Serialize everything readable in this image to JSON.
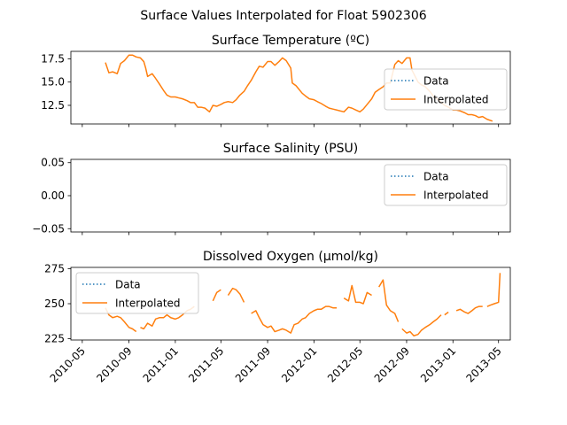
{
  "figure": {
    "suptitle": "Surface Values Interpolated for Float 5902306",
    "colors": {
      "data": "#1f77b4",
      "interpolated": "#ff7f0e",
      "axes": "#000000",
      "legend_border": "#cccccc"
    }
  },
  "chart_data": [
    {
      "type": "line",
      "title": "Surface Temperature (ºC)",
      "xlabel": "",
      "ylabel": "",
      "xlim": [
        "2010-04-01",
        "2013-06-01"
      ],
      "ylim": [
        10.5,
        18.3
      ],
      "yticks": [
        12.5,
        15.0,
        17.5
      ],
      "ytick_labels": [
        "12.5",
        "15.0",
        "17.5"
      ],
      "show_xtick_labels": false,
      "grid": false,
      "legend": {
        "position": "right",
        "entries": [
          "Data",
          "Interpolated"
        ]
      },
      "series": [
        {
          "name": "Interpolated",
          "style": "solid",
          "points": [
            [
              "2010-07-01",
              17.1
            ],
            [
              "2010-07-10",
              16.0
            ],
            [
              "2010-07-20",
              16.1
            ],
            [
              "2010-08-01",
              15.9
            ],
            [
              "2010-08-10",
              17.0
            ],
            [
              "2010-08-20",
              17.3
            ],
            [
              "2010-09-01",
              17.9
            ],
            [
              "2010-09-10",
              17.9
            ],
            [
              "2010-09-20",
              17.7
            ],
            [
              "2010-10-01",
              17.6
            ],
            [
              "2010-10-10",
              17.2
            ],
            [
              "2010-10-15",
              16.5
            ],
            [
              "2010-10-20",
              15.6
            ],
            [
              "2010-11-01",
              15.9
            ],
            [
              "2010-11-10",
              15.4
            ],
            [
              "2010-11-20",
              14.8
            ],
            [
              "2010-12-01",
              14.1
            ],
            [
              "2010-12-10",
              13.6
            ],
            [
              "2010-12-20",
              13.4
            ],
            [
              "2011-01-01",
              13.4
            ],
            [
              "2011-01-10",
              13.3
            ],
            [
              "2011-01-20",
              13.2
            ],
            [
              "2011-02-01",
              13.0
            ],
            [
              "2011-02-10",
              12.8
            ],
            [
              "2011-02-20",
              12.8
            ],
            [
              "2011-03-01",
              12.3
            ],
            [
              "2011-03-10",
              12.3
            ],
            [
              "2011-03-20",
              12.2
            ],
            [
              "2011-04-01",
              11.8
            ],
            [
              "2011-04-10",
              12.5
            ],
            [
              "2011-04-20",
              12.4
            ],
            [
              "2011-05-01",
              12.6
            ],
            [
              "2011-05-10",
              12.8
            ],
            [
              "2011-05-20",
              12.9
            ],
            [
              "2011-06-01",
              12.8
            ],
            [
              "2011-06-10",
              13.1
            ],
            [
              "2011-06-20",
              13.6
            ],
            [
              "2011-07-01",
              14.0
            ],
            [
              "2011-07-10",
              14.6
            ],
            [
              "2011-07-20",
              15.2
            ],
            [
              "2011-08-01",
              16.1
            ],
            [
              "2011-08-10",
              16.7
            ],
            [
              "2011-08-20",
              16.6
            ],
            [
              "2011-09-01",
              17.2
            ],
            [
              "2011-09-10",
              17.2
            ],
            [
              "2011-09-20",
              16.8
            ],
            [
              "2011-10-01",
              17.2
            ],
            [
              "2011-10-10",
              17.6
            ],
            [
              "2011-10-20",
              17.3
            ],
            [
              "2011-11-01",
              16.5
            ],
            [
              "2011-11-05",
              14.9
            ],
            [
              "2011-11-15",
              14.6
            ],
            [
              "2011-12-01",
              13.8
            ],
            [
              "2011-12-10",
              13.5
            ],
            [
              "2011-12-20",
              13.2
            ],
            [
              "2012-01-01",
              13.1
            ],
            [
              "2012-01-10",
              12.9
            ],
            [
              "2012-01-20",
              12.7
            ],
            [
              "2012-02-01",
              12.4
            ],
            [
              "2012-02-10",
              12.2
            ],
            [
              "2012-02-20",
              12.1
            ],
            [
              "2012-03-01",
              12.0
            ],
            [
              "2012-03-10",
              11.9
            ],
            [
              "2012-03-20",
              11.8
            ],
            [
              "2012-04-01",
              12.3
            ],
            [
              "2012-04-10",
              12.2
            ],
            [
              "2012-04-20",
              12.0
            ],
            [
              "2012-05-01",
              11.8
            ],
            [
              "2012-05-10",
              12.1
            ],
            [
              "2012-05-20",
              12.6
            ],
            [
              "2012-06-01",
              13.2
            ],
            [
              "2012-06-10",
              13.9
            ],
            [
              "2012-06-20",
              14.2
            ],
            [
              "2012-07-01",
              14.5
            ],
            [
              "2012-07-10",
              14.9
            ],
            [
              "2012-07-20",
              14.9
            ],
            [
              "2012-08-01",
              16.9
            ],
            [
              "2012-08-10",
              17.3
            ],
            [
              "2012-08-20",
              17.0
            ],
            [
              "2012-09-01",
              17.6
            ],
            [
              "2012-09-10",
              17.6
            ],
            [
              "2012-09-15",
              16.3
            ],
            [
              "2012-10-01",
              15.0
            ],
            [
              "2012-10-10",
              14.7
            ],
            [
              "2012-10-20",
              14.5
            ],
            [
              "2012-11-01",
              14.0
            ],
            [
              "2012-11-10",
              13.5
            ],
            [
              "2012-11-20",
              13.2
            ],
            [
              "2012-12-01",
              12.8
            ],
            [
              "2012-12-10",
              12.5
            ],
            [
              "2012-12-20",
              12.3
            ],
            [
              "2013-01-01",
              12.0
            ],
            [
              "2013-01-10",
              12.0
            ],
            [
              "2013-01-20",
              11.9
            ],
            [
              "2013-02-01",
              11.7
            ],
            [
              "2013-02-10",
              11.5
            ],
            [
              "2013-02-20",
              11.5
            ],
            [
              "2013-03-01",
              11.4
            ],
            [
              "2013-03-10",
              11.2
            ],
            [
              "2013-03-20",
              11.3
            ],
            [
              "2013-04-01",
              11.0
            ],
            [
              "2013-04-15",
              10.8
            ]
          ]
        }
      ]
    },
    {
      "type": "line",
      "title": "Surface Salinity (PSU)",
      "xlabel": "",
      "ylabel": "",
      "xlim": [
        "2010-04-01",
        "2013-06-01"
      ],
      "ylim": [
        -0.055,
        0.055
      ],
      "yticks": [
        -0.05,
        0.0,
        0.05
      ],
      "ytick_labels": [
        "−0.05",
        "0.00",
        "0.05"
      ],
      "show_xtick_labels": false,
      "grid": false,
      "legend": {
        "position": "top-right",
        "entries": [
          "Data",
          "Interpolated"
        ]
      },
      "series": []
    },
    {
      "type": "line",
      "title": "Dissolved Oxygen (µmol/kg)",
      "xlabel": "",
      "ylabel": "",
      "xlim": [
        "2010-04-01",
        "2013-06-01"
      ],
      "ylim": [
        224,
        276
      ],
      "yticks": [
        225,
        250,
        275
      ],
      "ytick_labels": [
        "225",
        "250",
        "275"
      ],
      "xticks": [
        "2010-05-01",
        "2010-09-01",
        "2011-01-01",
        "2011-05-01",
        "2011-09-01",
        "2012-01-01",
        "2012-05-01",
        "2012-09-01",
        "2013-01-01",
        "2013-05-01"
      ],
      "xtick_labels": [
        "2010-05",
        "2010-09",
        "2011-01",
        "2011-05",
        "2011-09",
        "2012-01",
        "2012-05",
        "2012-09",
        "2013-01",
        "2013-05"
      ],
      "show_xtick_labels": true,
      "grid": false,
      "legend": {
        "position": "top-left",
        "entries": [
          "Data",
          "Interpolated"
        ]
      },
      "series": [
        {
          "name": "Interpolated",
          "style": "solid",
          "segments": [
            [
              [
                "2010-07-01",
                247
              ],
              [
                "2010-07-10",
                242
              ],
              [
                "2010-07-20",
                240
              ],
              [
                "2010-08-01",
                241
              ],
              [
                "2010-08-10",
                240
              ],
              [
                "2010-08-20",
                237
              ],
              [
                "2010-09-01",
                233
              ],
              [
                "2010-09-10",
                232
              ],
              [
                "2010-09-20",
                230
              ]
            ],
            [
              [
                "2010-10-01",
                233
              ],
              [
                "2010-10-10",
                232
              ],
              [
                "2010-10-20",
                236
              ],
              [
                "2010-11-01",
                234
              ],
              [
                "2010-11-10",
                239
              ],
              [
                "2010-11-20",
                240
              ],
              [
                "2010-12-01",
                240
              ],
              [
                "2010-12-10",
                242
              ],
              [
                "2010-12-20",
                240
              ],
              [
                "2011-01-01",
                239
              ],
              [
                "2011-01-10",
                240
              ],
              [
                "2011-01-20",
                242
              ],
              [
                "2011-02-01",
                245
              ],
              [
                "2011-02-10",
                246
              ],
              [
                "2011-02-20",
                248
              ]
            ],
            [
              [
                "2011-04-10",
                252
              ],
              [
                "2011-04-20",
                258
              ],
              [
                "2011-05-01",
                260
              ]
            ],
            [
              [
                "2011-05-20",
                256
              ],
              [
                "2011-06-01",
                261
              ],
              [
                "2011-06-10",
                260
              ],
              [
                "2011-06-20",
                257
              ],
              [
                "2011-07-01",
                251
              ]
            ],
            [
              [
                "2011-07-20",
                243
              ],
              [
                "2011-08-01",
                245
              ],
              [
                "2011-08-10",
                240
              ],
              [
                "2011-08-20",
                235
              ],
              [
                "2011-09-01",
                233
              ],
              [
                "2011-09-10",
                234
              ],
              [
                "2011-09-20",
                230
              ],
              [
                "2011-10-01",
                231
              ],
              [
                "2011-10-10",
                232
              ],
              [
                "2011-10-20",
                231
              ],
              [
                "2011-11-01",
                229
              ],
              [
                "2011-11-10",
                235
              ],
              [
                "2011-11-20",
                236
              ],
              [
                "2011-12-01",
                239
              ],
              [
                "2011-12-10",
                240
              ],
              [
                "2011-12-20",
                243
              ],
              [
                "2012-01-01",
                245
              ],
              [
                "2012-01-10",
                246
              ],
              [
                "2012-01-20",
                246
              ],
              [
                "2012-02-01",
                248
              ],
              [
                "2012-02-10",
                248
              ],
              [
                "2012-02-20",
                247
              ],
              [
                "2012-03-01",
                247
              ]
            ],
            [
              [
                "2012-03-20",
                254
              ],
              [
                "2012-04-01",
                252
              ],
              [
                "2012-04-10",
                263
              ],
              [
                "2012-04-20",
                251
              ],
              [
                "2012-05-01",
                251
              ],
              [
                "2012-05-10",
                250
              ],
              [
                "2012-05-20",
                258
              ],
              [
                "2012-06-01",
                256
              ]
            ],
            [
              [
                "2012-06-20",
                262
              ],
              [
                "2012-07-01",
                267
              ],
              [
                "2012-07-10",
                249
              ],
              [
                "2012-07-20",
                245
              ],
              [
                "2012-08-01",
                243
              ],
              [
                "2012-08-10",
                237
              ]
            ],
            [
              [
                "2012-08-20",
                232
              ],
              [
                "2012-09-01",
                229
              ],
              [
                "2012-09-10",
                230
              ],
              [
                "2012-09-20",
                227
              ],
              [
                "2012-10-01",
                228
              ],
              [
                "2012-10-10",
                231
              ],
              [
                "2012-10-20",
                233
              ],
              [
                "2012-11-01",
                235
              ],
              [
                "2012-11-10",
                237
              ],
              [
                "2012-11-20",
                239
              ],
              [
                "2012-12-01",
                242
              ]
            ],
            [
              [
                "2012-12-10",
                242
              ],
              [
                "2012-12-20",
                244
              ]
            ],
            [
              [
                "2013-01-10",
                245
              ],
              [
                "2013-01-20",
                246
              ],
              [
                "2013-02-01",
                244
              ],
              [
                "2013-02-10",
                243
              ],
              [
                "2013-02-20",
                245
              ],
              [
                "2013-03-01",
                247
              ],
              [
                "2013-03-10",
                248
              ],
              [
                "2013-03-20",
                248
              ]
            ],
            [
              [
                "2013-04-01",
                248
              ],
              [
                "2013-04-10",
                249
              ],
              [
                "2013-04-20",
                250
              ],
              [
                "2013-05-01",
                251
              ],
              [
                "2013-05-05",
                272
              ]
            ]
          ]
        }
      ]
    }
  ]
}
